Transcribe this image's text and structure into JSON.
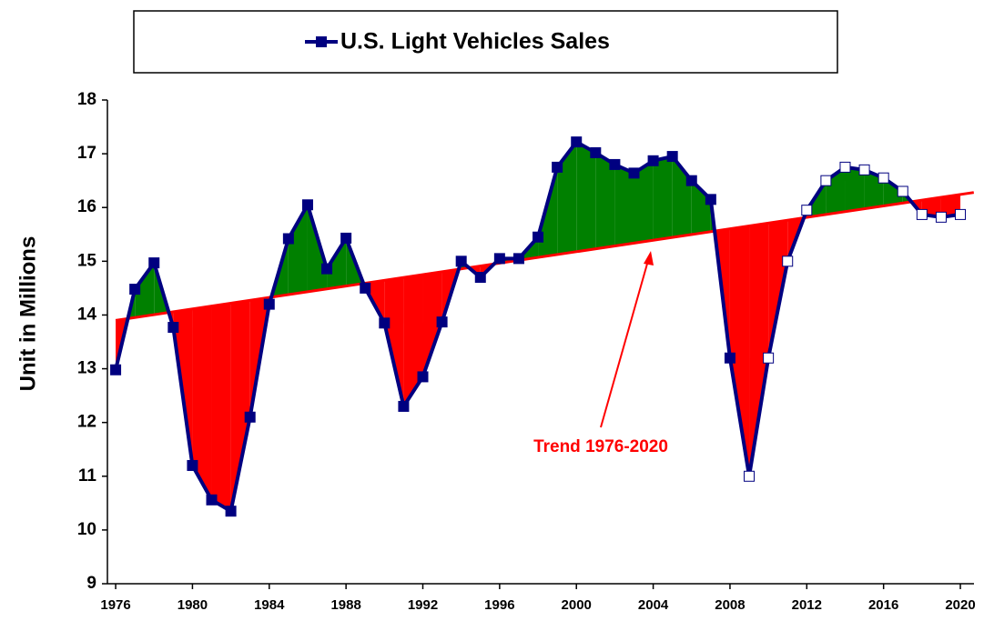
{
  "chart_data": {
    "type": "line",
    "title": "U.S. Light Vehicles Sales",
    "y_label": "Unit in Millions",
    "x": [
      1976,
      1977,
      1978,
      1979,
      1980,
      1981,
      1982,
      1983,
      1984,
      1985,
      1986,
      1987,
      1988,
      1989,
      1990,
      1991,
      1992,
      1993,
      1994,
      1995,
      1996,
      1997,
      1998,
      1999,
      2000,
      2001,
      2002,
      2003,
      2004,
      2005,
      2006,
      2007,
      2008,
      2009,
      2010,
      2011,
      2012,
      2013,
      2014,
      2015,
      2016,
      2017,
      2018,
      2019,
      2020
    ],
    "series": [
      {
        "name": "U.S. Light Vehicles Sales",
        "color": "#000080",
        "values": [
          12.98,
          14.48,
          14.97,
          13.77,
          11.2,
          10.56,
          10.35,
          12.1,
          14.2,
          15.42,
          16.05,
          14.86,
          15.43,
          14.5,
          13.85,
          12.3,
          12.85,
          13.87,
          15.0,
          14.7,
          15.05,
          15.05,
          15.45,
          16.75,
          17.22,
          17.02,
          16.8,
          16.64,
          16.87,
          16.95,
          16.5,
          16.15,
          13.2,
          11.0,
          13.2,
          15.0,
          15.95,
          16.5,
          16.75,
          16.7,
          16.55,
          16.3,
          15.87,
          15.82,
          15.87
        ],
        "marker_fill": [
          "#000080",
          "#000080",
          "#000080",
          "#000080",
          "#000080",
          "#000080",
          "#000080",
          "#000080",
          "#000080",
          "#000080",
          "#000080",
          "#000080",
          "#000080",
          "#000080",
          "#000080",
          "#000080",
          "#000080",
          "#000080",
          "#000080",
          "#000080",
          "#000080",
          "#000080",
          "#000080",
          "#000080",
          "#000080",
          "#000080",
          "#000080",
          "#000080",
          "#000080",
          "#000080",
          "#000080",
          "#000080",
          "#000080",
          "#ffffff",
          "#ffffff",
          "#ffffff",
          "#ffffff",
          "#ffffff",
          "#ffffff",
          "#ffffff",
          "#ffffff",
          "#ffffff",
          "#ffffff",
          "#ffffff",
          "#ffffff"
        ]
      }
    ],
    "trend": {
      "label": "Trend 1976-2020",
      "color": "#ff0000",
      "x": [
        1976,
        2020.7
      ],
      "values": [
        13.9,
        16.28
      ]
    },
    "above_color": "#008000",
    "below_color": "#ff0000",
    "xlim": [
      1975.57,
      2020.71
    ],
    "xticks": [
      1976,
      1980,
      1984,
      1988,
      1992,
      1996,
      2000,
      2004,
      2008,
      2012,
      2016,
      2020
    ],
    "ylim": [
      9,
      18
    ],
    "yticks": [
      9,
      10,
      11,
      12,
      13,
      14,
      15,
      16,
      17,
      18
    ]
  }
}
